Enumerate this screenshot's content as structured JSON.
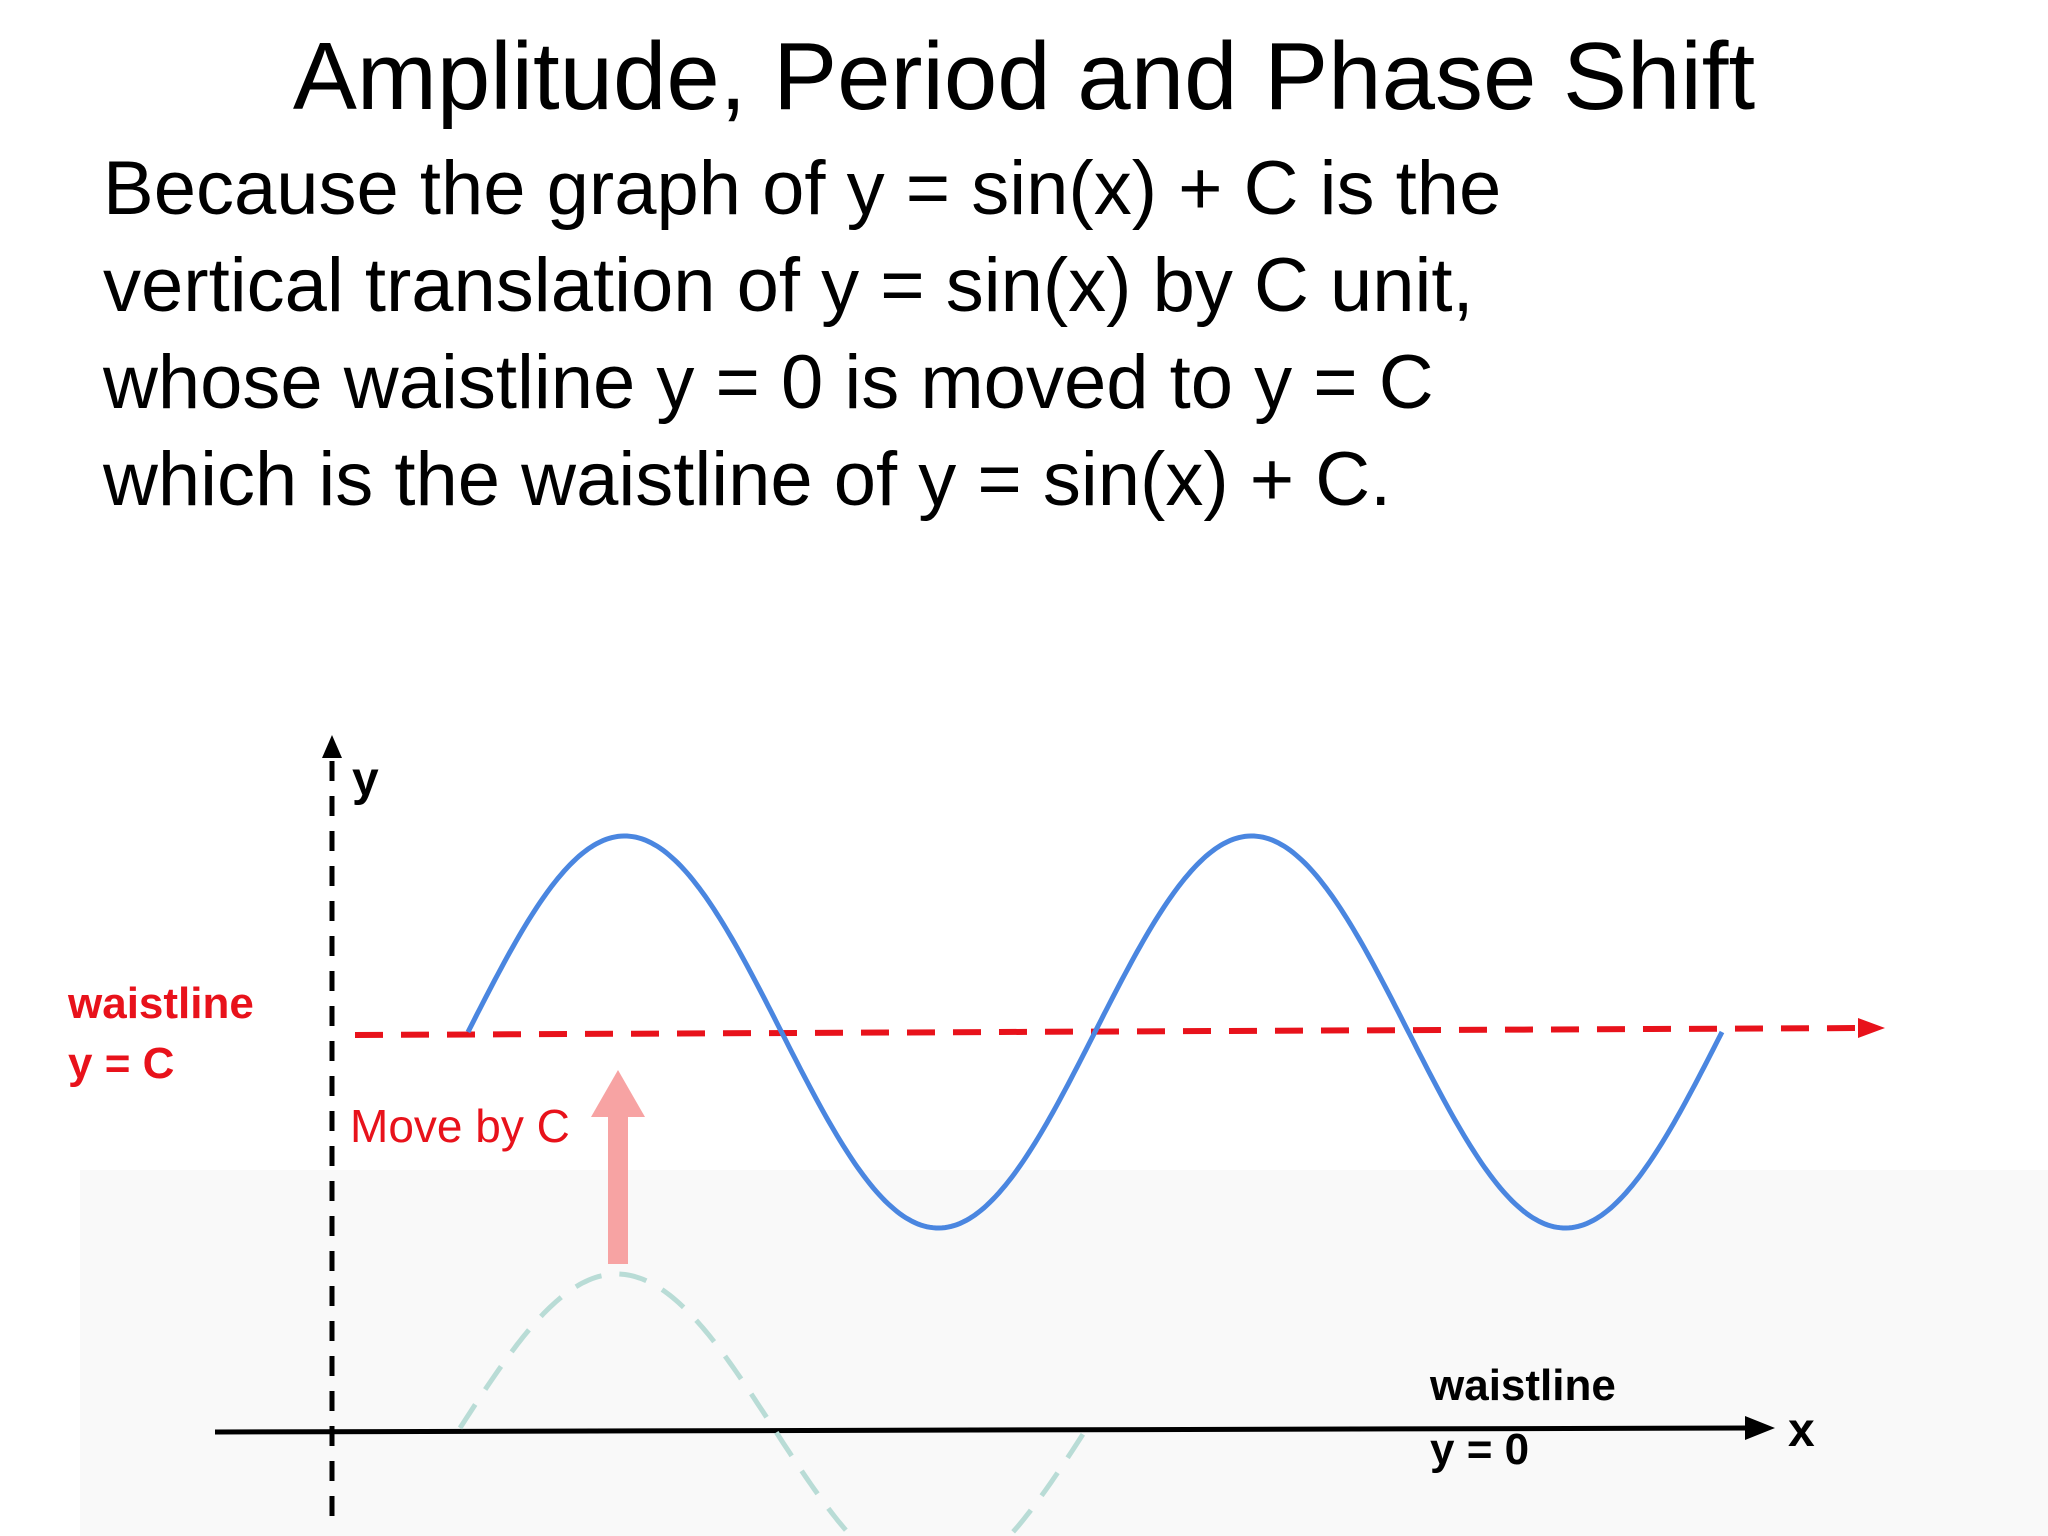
{
  "title": "Amplitude, Period and Phase Shift",
  "paragraph": [
    "Because the graph of y = sin(x) + C is the",
    "vertical translation of y = sin(x) by C unit,",
    "whose waistline y = 0 is moved to y = C",
    "which is the waistline of y = sin(x) + C."
  ],
  "diagram": {
    "y_axis_label": "y",
    "x_axis_label": "x",
    "upper_waistline": {
      "line1": "waistline",
      "line2": "y = C"
    },
    "lower_waistline": {
      "line1": "waistline",
      "line2": "y = 0"
    },
    "move_label": "Move by C",
    "colors": {
      "shifted_curve": "#4a86e0",
      "original_curve": "#b9dcd6",
      "waistline_red": "#e8121b",
      "move_arrow": "#f7a3a3",
      "axis": "#000000"
    }
  }
}
